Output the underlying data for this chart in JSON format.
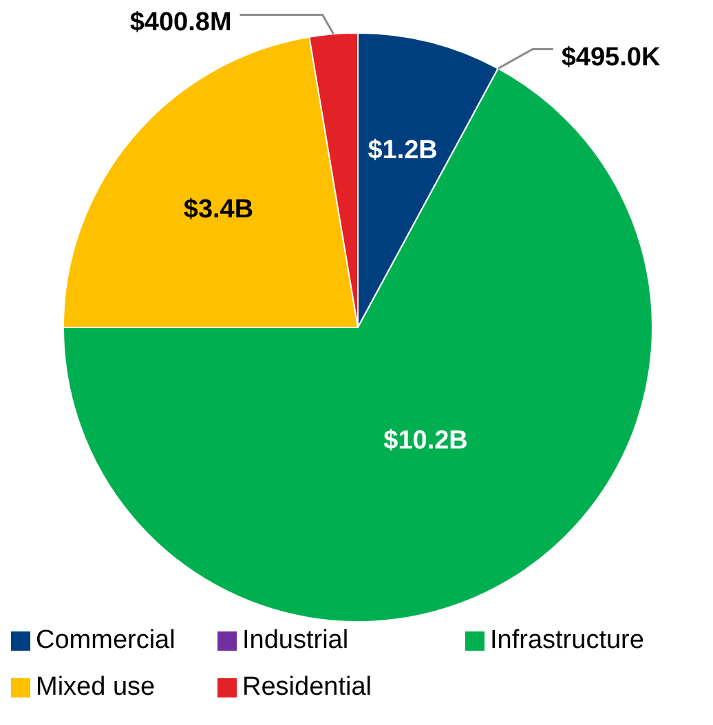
{
  "chart_data": {
    "type": "pie",
    "categories": [
      "Commercial",
      "Industrial",
      "Infrastructure",
      "Mixed use",
      "Residential"
    ],
    "values": [
      1200000000,
      495000,
      10200000000,
      3400000000,
      400800000
    ],
    "value_labels": [
      "$1.2B",
      "$495.0K",
      "$10.2B",
      "$3.4B",
      "$400.8M"
    ],
    "colors": [
      "#003f7f",
      "#7030a0",
      "#00b050",
      "#ffc000",
      "#e32227"
    ],
    "legend": "bottom"
  }
}
